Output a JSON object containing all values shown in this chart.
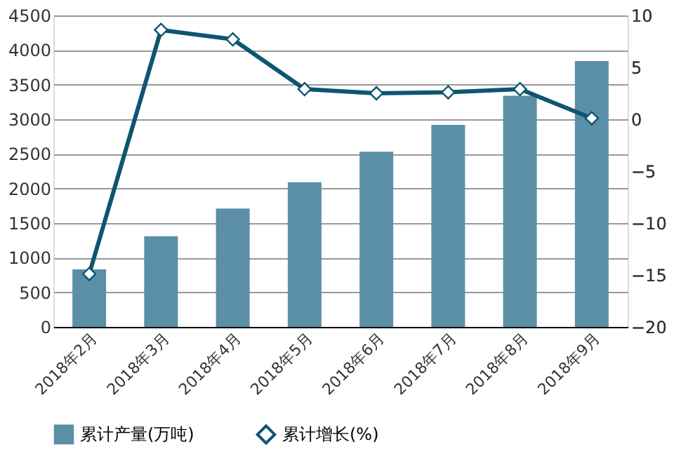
{
  "chart_data": {
    "type": "bar",
    "categories": [
      "2018年2月",
      "2018年3月",
      "2018年4月",
      "2018年5月",
      "2018年6月",
      "2018年7月",
      "2018年8月",
      "2018年9月"
    ],
    "series": [
      {
        "name": "累计产量(万吨)",
        "color": "#5b8fa8",
        "values": [
          830,
          1310,
          1710,
          2090,
          2530,
          2920,
          3340,
          3840
        ]
      },
      {
        "name": "累计增长(%)",
        "type": "line",
        "axis": "y2",
        "color": "#0e5570",
        "marker": "diamond",
        "values": [
          -14.9,
          8.6,
          7.7,
          2.9,
          2.5,
          2.6,
          2.9,
          0.1
        ]
      }
    ],
    "ylim": [
      0,
      4500
    ],
    "yticks": [
      0,
      500,
      1000,
      1500,
      2000,
      2500,
      3000,
      3500,
      4000,
      4500
    ],
    "y2lim": [
      -20,
      10
    ],
    "y2ticks": [
      -20,
      -15,
      -10,
      -5,
      0,
      5,
      10
    ],
    "grid": "y",
    "legend": "bottom"
  }
}
